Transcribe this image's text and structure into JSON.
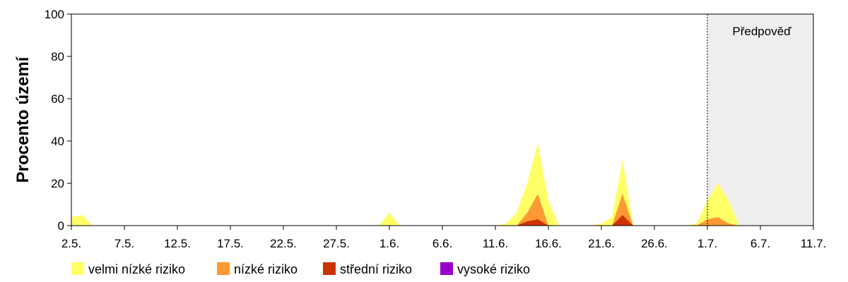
{
  "chart_data": {
    "type": "area",
    "stacked": false,
    "title": "",
    "xlabel": "",
    "ylabel": "Procento území",
    "ylim": [
      0,
      100
    ],
    "yticks": [
      0,
      20,
      40,
      60,
      80,
      100
    ],
    "x_range": [
      "2.5.",
      "11.7."
    ],
    "xtick_labels": [
      "2.5.",
      "7.5.",
      "12.5.",
      "17.5.",
      "22.5.",
      "27.5.",
      "1.6.",
      "6.6.",
      "11.6.",
      "16.6.",
      "21.6.",
      "26.6.",
      "1.7.",
      "6.7.",
      "11.7."
    ],
    "x": [
      "2.5.",
      "3.5.",
      "4.5.",
      "5.5.",
      "30.5.",
      "31.5.",
      "1.6.",
      "2.6.",
      "11.6.",
      "12.6.",
      "13.6.",
      "14.6.",
      "15.6.",
      "16.6.",
      "17.6.",
      "20.6.",
      "21.6.",
      "22.6.",
      "23.6.",
      "24.6.",
      "29.6.",
      "30.6.",
      "1.7.",
      "2.7.",
      "3.7.",
      "4.7.",
      "5.7."
    ],
    "forecast": {
      "label": "Předpověď",
      "start": "1.7.",
      "end": "11.7."
    },
    "grid": false,
    "legend_position": "bottom",
    "series": [
      {
        "name": "velmi nízké riziko",
        "color": "#ffff66",
        "values": [
          4,
          5,
          0,
          0,
          0,
          0,
          6,
          0,
          0,
          1,
          6,
          20,
          39,
          12,
          0,
          0,
          1,
          4,
          31,
          0,
          0,
          1,
          12,
          20,
          12,
          0,
          0
        ]
      },
      {
        "name": "nízké riziko",
        "color": "#ff9933",
        "values": [
          0,
          0,
          0,
          0,
          0,
          0,
          0,
          0,
          0,
          0,
          0,
          6,
          15,
          0,
          0,
          0,
          0,
          0,
          15,
          0,
          0,
          0,
          3,
          4,
          1,
          0,
          0
        ]
      },
      {
        "name": "střední riziko",
        "color": "#cc3300",
        "values": [
          0,
          0,
          0,
          0,
          0,
          0,
          0,
          0,
          0,
          0,
          0,
          2,
          3,
          0,
          0,
          0,
          0,
          0,
          5,
          0,
          0,
          0,
          0,
          0,
          0,
          0,
          0
        ]
      },
      {
        "name": "vysoké riziko",
        "color": "#9900cc",
        "values": [
          0,
          0,
          0,
          0,
          0,
          0,
          0,
          0,
          0,
          0,
          0,
          0,
          0,
          0,
          0,
          0,
          0,
          0,
          0,
          0,
          0,
          0,
          0,
          0,
          0,
          0,
          0
        ]
      }
    ],
    "colors": {
      "forecast_background": "#eeeeee",
      "axis": "#000000"
    }
  }
}
